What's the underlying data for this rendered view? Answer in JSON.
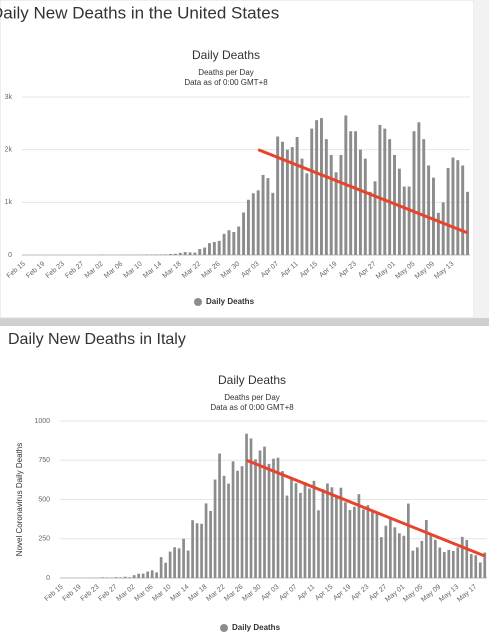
{
  "chart_data": [
    {
      "type": "bar",
      "page_title": "Daily New Deaths in the United States",
      "title": "Daily Deaths",
      "subtitle": "Deaths per Day",
      "note": "Data as of 0:00 GMT+8",
      "categories": [
        "Feb 15",
        null,
        null,
        null,
        "Feb 19",
        null,
        null,
        null,
        "Feb 23",
        null,
        null,
        null,
        "Feb 27",
        null,
        null,
        null,
        "Mar 02",
        null,
        null,
        null,
        "Mar 06",
        null,
        null,
        null,
        "Mar 10",
        null,
        null,
        null,
        "Mar 14",
        null,
        null,
        null,
        "Mar 18",
        null,
        null,
        null,
        "Mar 22",
        null,
        null,
        null,
        "Mar 26",
        null,
        null,
        null,
        "Mar 30",
        null,
        null,
        null,
        "Apr 03",
        null,
        null,
        null,
        "Apr 07",
        null,
        null,
        null,
        "Apr 11",
        null,
        null,
        null,
        "Apr 15",
        null,
        null,
        null,
        "Apr 19",
        null,
        null,
        null,
        "Apr 23",
        null,
        null,
        null,
        "Apr 27",
        null,
        null,
        null,
        "May 01",
        null,
        null,
        null,
        "May 05",
        null,
        null,
        null,
        "May 09",
        null,
        null,
        null,
        "May 13",
        null,
        null,
        null
      ],
      "series": [
        {
          "name": "Daily Deaths",
          "color": "#8c8c8c",
          "values": [
            0,
            0,
            0,
            0,
            0,
            0,
            0,
            0,
            0,
            0,
            0,
            0,
            0,
            0,
            1,
            0,
            5,
            1,
            4,
            1,
            2,
            3,
            4,
            3,
            5,
            8,
            7,
            10,
            10,
            12,
            18,
            23,
            40,
            56,
            49,
            46,
            113,
            141,
            225,
            247,
            268,
            402,
            470,
            437,
            541,
            807,
            1049,
            1172,
            1228,
            1520,
            1460,
            1180,
            2250,
            2150,
            2000,
            2050,
            2240,
            1830,
            1550,
            2400,
            2560,
            2600,
            2200,
            1900,
            1570,
            1900,
            2650,
            2350,
            2350,
            2000,
            1830,
            1200,
            1400,
            2470,
            2400,
            2200,
            1900,
            1640,
            1300,
            1300,
            2350,
            2520,
            2200,
            1700,
            1470,
            800,
            1000,
            1650,
            1850,
            1800,
            1700,
            1200
          ]
        }
      ],
      "trend_line": {
        "color": "#e8432c",
        "x": [
          48,
          91
        ],
        "values": [
          2000,
          420
        ]
      },
      "ylim": [
        0,
        3000
      ],
      "yticks": [
        0,
        {
          "value": 1000,
          "label": "1k"
        },
        {
          "value": 2000,
          "label": "2k"
        },
        {
          "value": 3000,
          "label": "3k"
        }
      ],
      "grid": true
    },
    {
      "type": "bar",
      "page_title": "Daily New Deaths in Italy",
      "title": "Daily Deaths",
      "subtitle": "Deaths per Day",
      "note": "Data as of 0:00 GMT+8",
      "ylabel": "Novel Coronavirus Daily Deaths",
      "categories": [
        "Feb 15",
        null,
        null,
        null,
        "Feb 19",
        null,
        null,
        null,
        "Feb 23",
        null,
        null,
        null,
        "Feb 27",
        null,
        null,
        null,
        "Mar 02",
        null,
        null,
        null,
        "Mar 06",
        null,
        null,
        null,
        "Mar 10",
        null,
        null,
        null,
        "Mar 14",
        null,
        null,
        null,
        "Mar 18",
        null,
        null,
        null,
        "Mar 22",
        null,
        null,
        null,
        "Mar 26",
        null,
        null,
        null,
        "Mar 30",
        null,
        null,
        null,
        "Apr 03",
        null,
        null,
        null,
        "Apr 07",
        null,
        null,
        null,
        "Apr 11",
        null,
        null,
        null,
        "Apr 15",
        null,
        null,
        null,
        "Apr 19",
        null,
        null,
        null,
        "Apr 23",
        null,
        null,
        null,
        "Apr 27",
        null,
        null,
        null,
        "May 01",
        null,
        null,
        null,
        "May 05",
        null,
        null,
        null,
        "May 09",
        null,
        null,
        null,
        "May 13",
        null,
        null,
        null,
        "May 17",
        null,
        null
      ],
      "series": [
        {
          "name": "Daily Deaths",
          "color": "#8c8c8c",
          "values": [
            0,
            0,
            0,
            0,
            0,
            0,
            1,
            1,
            1,
            4,
            3,
            2,
            5,
            4,
            8,
            5,
            18,
            27,
            28,
            41,
            49,
            36,
            133,
            97,
            168,
            196,
            189,
            250,
            175,
            368,
            349,
            345,
            475,
            427,
            627,
            793,
            651,
            601,
            743,
            683,
            712,
            919,
            889,
            756,
            812,
            837,
            727,
            760,
            766,
            681,
            525,
            636,
            604,
            542,
            610,
            570,
            619,
            431,
            566,
            602,
            578,
            525,
            575,
            482,
            433,
            454,
            534,
            437,
            464,
            420,
            415,
            260,
            333,
            382,
            323,
            285,
            269,
            474,
            174,
            195,
            236,
            369,
            274,
            243,
            194,
            165,
            179,
            172,
            195,
            262,
            242,
            153,
            145,
            99,
            162
          ]
        }
      ],
      "trend_line": {
        "color": "#e8432c",
        "x": [
          41,
          94
        ],
        "values": [
          750,
          140
        ]
      },
      "ylim": [
        0,
        1000
      ],
      "yticks": [
        0,
        250,
        500,
        750,
        1000
      ],
      "grid": true
    }
  ]
}
